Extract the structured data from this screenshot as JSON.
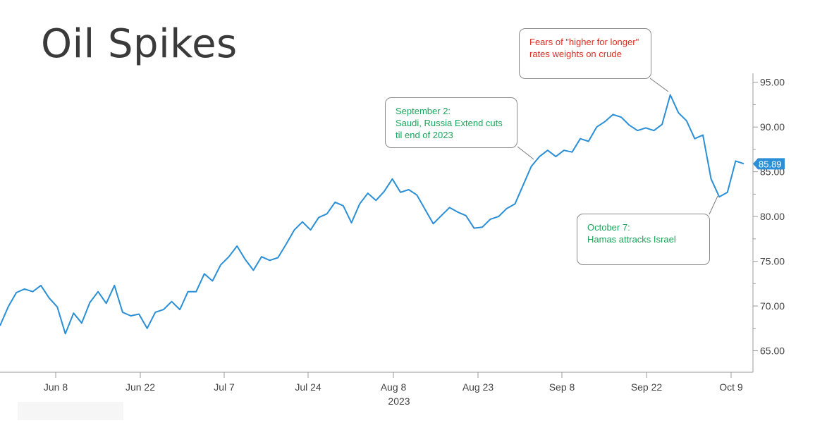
{
  "title": "Oil Spikes",
  "colors": {
    "line": "#2a8fd6",
    "price_tag": "#2a8fd6",
    "axis": "#9a9a9a",
    "title": "#3a3a3a",
    "annotation_red": "#d93025",
    "annotation_green": "#1aa55a"
  },
  "annotations": [
    {
      "id": "fed",
      "color": "red",
      "lines": [
        "Fears of \"higher for longer\"",
        "rates weights on crude"
      ]
    },
    {
      "id": "saudi",
      "color": "green",
      "lines": [
        "September 2:",
        "Saudi, Russia Extend cuts",
        "til end of 2023"
      ]
    },
    {
      "id": "hamas",
      "color": "green",
      "lines": [
        "October 7:",
        "Hamas attracks Israel"
      ]
    }
  ],
  "chart_data": {
    "type": "line",
    "title": "Oil Spikes",
    "xlabel": "2023",
    "ylabel": "",
    "x_tick_labels": [
      "Jun 8",
      "Jun 22",
      "Jul 7",
      "Jul 24",
      "Aug 8",
      "Aug 23",
      "Sep 8",
      "Sep 22",
      "Oct 9"
    ],
    "y_tick_labels": [
      "65.00",
      "70.00",
      "75.00",
      "80.00",
      "85.00",
      "90.00",
      "95.00"
    ],
    "ylim": [
      62.6,
      96.0
    ],
    "y_axis_position": "right",
    "grid": false,
    "last_price_label": "85.89",
    "series": [
      {
        "values": [
          67.8,
          69.9,
          71.5,
          71.9,
          71.6,
          72.3,
          70.9,
          69.9,
          66.9,
          69.2,
          68.1,
          70.4,
          71.6,
          70.3,
          72.3,
          69.3,
          68.9,
          69.1,
          67.5,
          69.3,
          69.6,
          70.5,
          69.6,
          71.6,
          71.6,
          73.6,
          72.8,
          74.6,
          75.5,
          76.7,
          75.2,
          74.0,
          75.5,
          75.1,
          75.4,
          76.9,
          78.5,
          79.4,
          78.5,
          79.9,
          80.3,
          81.6,
          81.2,
          79.3,
          81.4,
          82.6,
          81.8,
          82.8,
          84.2,
          82.7,
          83.0,
          82.4,
          80.8,
          79.2,
          80.1,
          81.0,
          80.5,
          80.1,
          78.7,
          78.8,
          79.7,
          80.0,
          80.9,
          81.4,
          83.5,
          85.6,
          86.7,
          87.4,
          86.7,
          87.4,
          87.2,
          88.7,
          88.4,
          90.0,
          90.6,
          91.4,
          91.1,
          90.2,
          89.6,
          89.9,
          89.6,
          90.3,
          93.6,
          91.6,
          90.7,
          88.7,
          89.1,
          84.2,
          82.2,
          82.7,
          86.2,
          85.9
        ]
      }
    ]
  }
}
